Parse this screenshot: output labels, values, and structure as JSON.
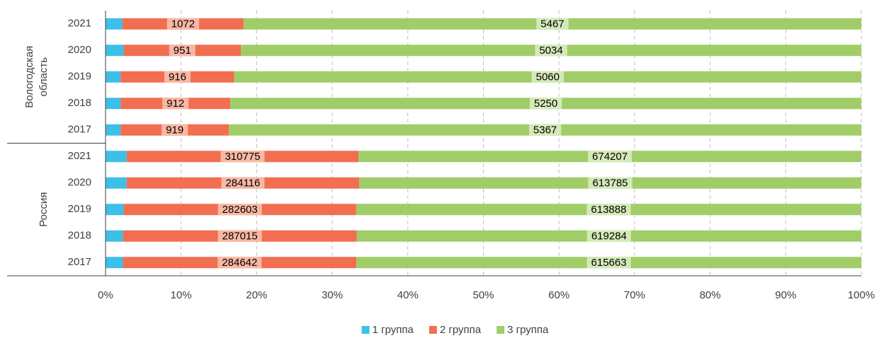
{
  "chart_data": {
    "type": "bar",
    "orientation": "horizontal",
    "stacked": "percent",
    "groups": [
      {
        "label": [
          "Вологодская",
          "область"
        ],
        "categories": [
          "2021",
          "2020",
          "2019",
          "2018",
          "2017"
        ]
      },
      {
        "label": [
          "Россия"
        ],
        "categories": [
          "2021",
          "2020",
          "2019",
          "2018",
          "2017"
        ]
      }
    ],
    "series": [
      {
        "name": "1 группа",
        "color": "#3dbfe8",
        "label_color": null,
        "values": [
          150,
          147,
          122,
          126,
          128,
          28400,
          25800,
          22000,
          21400,
          21200
        ]
      },
      {
        "name": "2 группа",
        "color": "#f26e50",
        "label_color": "#f8b8a3",
        "values": [
          1072,
          951,
          916,
          912,
          919,
          310775,
          284116,
          282603,
          287015,
          284642
        ]
      },
      {
        "name": "3 группа",
        "color": "#a0cd67",
        "label_color": "#d4e9b8",
        "values": [
          5467,
          5034,
          5060,
          5250,
          5367,
          674207,
          613785,
          613888,
          619284,
          615663
        ]
      }
    ],
    "xlim": [
      0,
      100
    ],
    "xticks": [
      {
        "value": 0,
        "label": "0%"
      },
      {
        "value": 10,
        "label": "10%"
      },
      {
        "value": 20,
        "label": "20%"
      },
      {
        "value": 30,
        "label": "30%"
      },
      {
        "value": 40,
        "label": "40%"
      },
      {
        "value": 50,
        "label": "50%"
      },
      {
        "value": 60,
        "label": "60%"
      },
      {
        "value": 70,
        "label": "70%"
      },
      {
        "value": 80,
        "label": "80%"
      },
      {
        "value": 90,
        "label": "90%"
      },
      {
        "value": 100,
        "label": "100%"
      }
    ],
    "grid": true,
    "legend": "bottom"
  }
}
